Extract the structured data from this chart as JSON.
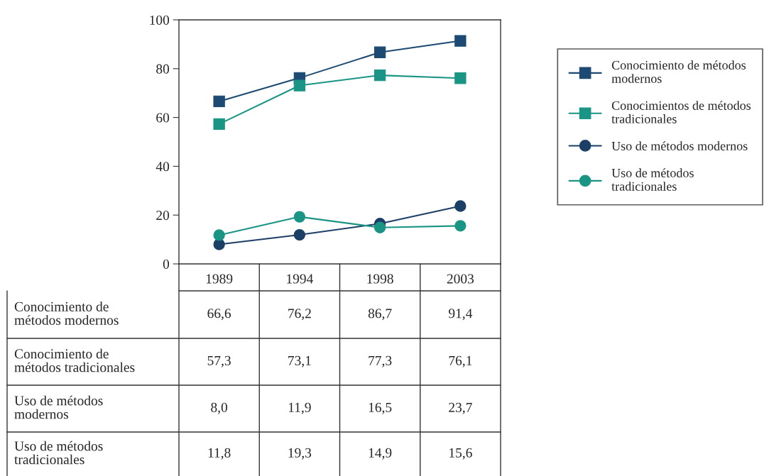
{
  "chart_data": {
    "type": "line",
    "categories": [
      "1989",
      "1994",
      "1998",
      "2003"
    ],
    "series": [
      {
        "name": "Conocimiento de métodos modernos",
        "color": "#1c4a72",
        "marker": "square",
        "values": [
          66.6,
          76.2,
          86.7,
          91.4
        ],
        "value_labels": [
          "66,6",
          "76,2",
          "86,7",
          "91,4"
        ]
      },
      {
        "name": "Conocimientos de métodos tradicionales",
        "color": "#1a9585",
        "marker": "square",
        "values": [
          57.3,
          73.1,
          77.3,
          76.1
        ],
        "value_labels": [
          "57,3",
          "73,1",
          "77,3",
          "76,1"
        ]
      },
      {
        "name": "Uso de métodos modernos",
        "color": "#1c3f66",
        "marker": "circle",
        "values": [
          8.0,
          11.9,
          16.5,
          23.7
        ],
        "value_labels": [
          "8,0",
          "11,9",
          "16,5",
          "23,7"
        ]
      },
      {
        "name": "Uso de métodos tradicionales",
        "color": "#1a9585",
        "marker": "circle",
        "values": [
          11.8,
          19.3,
          14.9,
          15.6
        ],
        "value_labels": [
          "11,8",
          "19,3",
          "14,9",
          "15,6"
        ]
      }
    ],
    "annotations": [
      "Conocimiento de métodos modernos",
      "Conocimiento de métodos tradicionales",
      "Uso de métodos modernos",
      "Uso de métodos tradicionales"
    ],
    "ylim": [
      0,
      100
    ],
    "yticks": [
      0,
      20,
      40,
      60,
      80,
      100
    ],
    "legend": "top right",
    "grid": false,
    "line_style": "solid"
  }
}
